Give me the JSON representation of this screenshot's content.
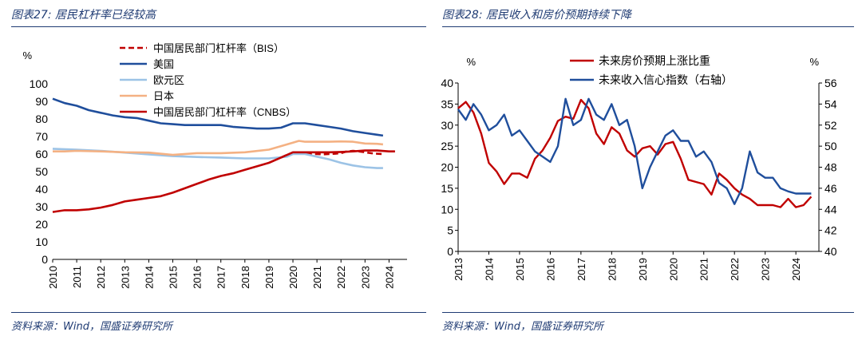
{
  "panels": {
    "left": {
      "title_prefix": "图表27:",
      "title_text": "居民杠杆率已经较高",
      "source": "资料来源：Wind，国盛证券研究所"
    },
    "right": {
      "title_prefix": "图表28:",
      "title_text": "居民收入和房价预期持续下降",
      "source": "资料来源：Wind，国盛证券研究所"
    }
  },
  "chart_data": [
    {
      "type": "line",
      "title": "居民杠杆率已经较高",
      "ylabel": "%",
      "ylim": [
        0,
        100
      ],
      "yticks": [
        0,
        10,
        20,
        30,
        40,
        50,
        60,
        70,
        80,
        90,
        100
      ],
      "xlim": [
        2010,
        2024.75
      ],
      "xticks": [
        "2010",
        "2011",
        "2012",
        "2013",
        "2014",
        "2015",
        "2016",
        "2017",
        "2018",
        "2019",
        "2020",
        "2021",
        "2022",
        "2023",
        "2024"
      ],
      "legend_position": "top",
      "series": [
        {
          "name": "中国居民部门杠杆率（BIS）",
          "color": "#c00000",
          "dashed": true,
          "x": [
            2019.5,
            2019.75,
            2020,
            2020.25,
            2020.5,
            2020.75,
            2021,
            2021.25,
            2021.5,
            2021.75,
            2022,
            2022.25,
            2022.5,
            2022.75,
            2023,
            2023.25,
            2023.5,
            2023.75
          ],
          "y": [
            58,
            59.5,
            60.5,
            61,
            60.5,
            60,
            60,
            59.8,
            60,
            60.2,
            60.5,
            61.5,
            61.8,
            61.5,
            61,
            60.5,
            60.2,
            60
          ]
        },
        {
          "name": "美国",
          "color": "#1f4e9c",
          "dashed": false,
          "x": [
            2010,
            2010.5,
            2011,
            2011.5,
            2012,
            2012.5,
            2013,
            2013.5,
            2014,
            2014.5,
            2015,
            2015.5,
            2016,
            2016.5,
            2017,
            2017.5,
            2018,
            2018.5,
            2019,
            2019.5,
            2020,
            2020.5,
            2021,
            2021.5,
            2022,
            2022.5,
            2023,
            2023.5,
            2023.75
          ],
          "y": [
            91.5,
            89,
            87.5,
            85,
            83.5,
            82,
            81,
            80.5,
            79,
            77.5,
            77,
            76.5,
            76.5,
            76.5,
            76.5,
            75.5,
            75,
            74.5,
            74.5,
            75,
            77.5,
            77.5,
            76.5,
            75.5,
            74.5,
            73,
            72,
            71,
            70.5
          ]
        },
        {
          "name": "欧元区",
          "color": "#9cc3e6",
          "dashed": false,
          "x": [
            2010,
            2011,
            2012,
            2013,
            2014,
            2015,
            2016,
            2017,
            2018,
            2019,
            2019.75,
            2020,
            2020.5,
            2021,
            2021.5,
            2022,
            2022.5,
            2023,
            2023.5,
            2023.75
          ],
          "y": [
            63,
            62.5,
            61.8,
            60.8,
            59.8,
            58.8,
            58.3,
            58,
            57.5,
            57.5,
            58.5,
            60,
            60,
            58.5,
            57,
            55,
            53.5,
            52.5,
            52,
            52
          ]
        },
        {
          "name": "日本",
          "color": "#f4b183",
          "dashed": false,
          "x": [
            2010,
            2010.5,
            2011,
            2012,
            2013,
            2014,
            2015,
            2016,
            2017,
            2018,
            2019,
            2019.5,
            2020,
            2020.25,
            2020.5,
            2021,
            2021.5,
            2022,
            2022.5,
            2023,
            2023.5,
            2023.75
          ],
          "y": [
            61.5,
            61.5,
            61.8,
            61.5,
            61,
            60.8,
            59.5,
            60.5,
            60.5,
            61,
            62.5,
            64.5,
            66.5,
            67.5,
            67,
            67,
            67,
            67.2,
            67,
            66,
            65.8,
            65.5
          ]
        },
        {
          "name": "中国居民部门杠杆率（CNBS）",
          "color": "#c00000",
          "dashed": false,
          "x": [
            2010,
            2010.5,
            2011,
            2011.5,
            2012,
            2012.5,
            2013,
            2013.5,
            2014,
            2014.5,
            2015,
            2015.5,
            2016,
            2016.5,
            2017,
            2017.5,
            2018,
            2018.5,
            2019,
            2019.5,
            2020,
            2020.5,
            2021,
            2021.5,
            2022,
            2022.5,
            2023,
            2023.5,
            2024,
            2024.25
          ],
          "y": [
            27,
            28,
            28,
            28.5,
            29.5,
            31,
            33,
            34,
            35,
            36,
            38,
            40.5,
            43,
            45.5,
            47.5,
            49,
            51,
            53,
            55,
            58,
            61,
            61,
            61,
            61,
            61.2,
            61.5,
            62,
            62,
            61.5,
            61.5
          ]
        }
      ]
    },
    {
      "type": "line",
      "title": "居民收入和房价预期持续下降",
      "ylabel": "%",
      "ylabel_right": "%",
      "ylim": [
        0,
        40
      ],
      "ylim_right": [
        40,
        56
      ],
      "yticks": [
        0,
        5,
        10,
        15,
        20,
        25,
        30,
        35,
        40
      ],
      "yticks_right": [
        40,
        42,
        44,
        46,
        48,
        50,
        52,
        54,
        56
      ],
      "xlim": [
        2013,
        2024.75
      ],
      "xticks": [
        "2013",
        "2014",
        "2015",
        "2016",
        "2017",
        "2018",
        "2019",
        "2020",
        "2021",
        "2022",
        "2023",
        "2024"
      ],
      "legend_position": "top",
      "series": [
        {
          "name": "未来房价预期上涨比重",
          "color": "#c00000",
          "axis": "left",
          "x": [
            2013,
            2013.25,
            2013.5,
            2013.75,
            2014,
            2014.25,
            2014.5,
            2014.75,
            2015,
            2015.25,
            2015.5,
            2015.75,
            2016,
            2016.25,
            2016.5,
            2016.75,
            2017,
            2017.25,
            2017.5,
            2017.75,
            2018,
            2018.25,
            2018.5,
            2018.75,
            2019,
            2019.25,
            2019.5,
            2019.75,
            2020,
            2020.25,
            2020.5,
            2020.75,
            2021,
            2021.25,
            2021.5,
            2021.75,
            2022,
            2022.25,
            2022.5,
            2022.75,
            2023,
            2023.25,
            2023.5,
            2023.75,
            2024,
            2024.25,
            2024.5
          ],
          "y": [
            34,
            35.5,
            33,
            28,
            21,
            19,
            16,
            18.5,
            18.5,
            17.5,
            22,
            24,
            27,
            31,
            32,
            31.5,
            36,
            34,
            28,
            25.5,
            29.5,
            28,
            24,
            22.5,
            24.5,
            25,
            23,
            25.5,
            26,
            22,
            17,
            16.5,
            16,
            13.5,
            18.5,
            17,
            15,
            13.5,
            12.5,
            11,
            11,
            11,
            10.5,
            12.5,
            10.5,
            11,
            13
          ]
        },
        {
          "name": "未来收入信心指数（右轴）",
          "color": "#1f4e9c",
          "axis": "right",
          "x": [
            2013,
            2013.25,
            2013.5,
            2013.75,
            2014,
            2014.25,
            2014.5,
            2014.75,
            2015,
            2015.25,
            2015.5,
            2015.75,
            2016,
            2016.25,
            2016.5,
            2016.75,
            2017,
            2017.25,
            2017.5,
            2017.75,
            2018,
            2018.25,
            2018.5,
            2018.75,
            2019,
            2019.25,
            2019.5,
            2019.75,
            2020,
            2020.25,
            2020.5,
            2020.75,
            2021,
            2021.25,
            2021.5,
            2021.75,
            2022,
            2022.25,
            2022.5,
            2022.75,
            2023,
            2023.25,
            2023.5,
            2023.75,
            2024,
            2024.25,
            2024.5
          ],
          "y": [
            53.5,
            52.5,
            54,
            53,
            51.5,
            52,
            53,
            51,
            51.5,
            50.5,
            49.5,
            49,
            48.5,
            50,
            54.5,
            52,
            52.5,
            54.5,
            53,
            52.5,
            54,
            52,
            52.5,
            50,
            46,
            48,
            49.5,
            51,
            51.5,
            50.5,
            50.5,
            49,
            49.5,
            48.5,
            46.5,
            46,
            44.5,
            46,
            49.5,
            47.5,
            47,
            47,
            46,
            45.7,
            45.5,
            45.5,
            45.5
          ]
        }
      ]
    }
  ]
}
